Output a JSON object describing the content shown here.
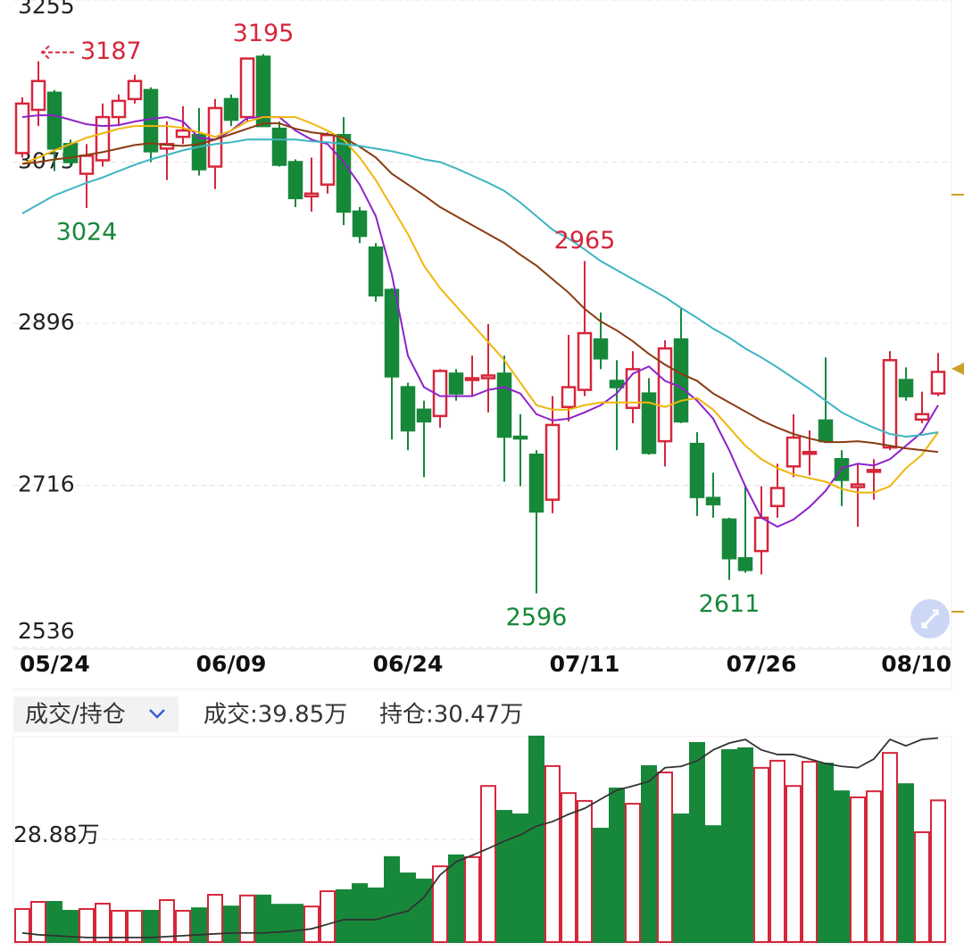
{
  "header": {
    "selector": "成交/持仓",
    "volume": "成交:39.85万",
    "open_interest": "持仓:30.47万"
  },
  "chart_data": [
    {
      "type": "candlestick",
      "categories": [
        "05/24",
        null,
        null,
        null,
        null,
        null,
        null,
        null,
        null,
        null,
        null,
        null,
        null,
        "06/09",
        null,
        null,
        null,
        null,
        null,
        null,
        null,
        null,
        null,
        null,
        "06/24",
        null,
        null,
        null,
        null,
        null,
        null,
        null,
        null,
        null,
        null,
        "07/11",
        null,
        null,
        null,
        null,
        null,
        null,
        null,
        null,
        null,
        null,
        "07/26",
        null,
        null,
        null,
        null,
        null,
        null,
        null,
        null,
        null,
        null,
        "08/10"
      ],
      "open": [
        3085,
        3133,
        3152,
        3095,
        3062,
        3077,
        3125,
        3145,
        3155,
        3090,
        3103,
        3105,
        3070,
        3145,
        3125,
        3192,
        3112,
        3075,
        3037,
        3050,
        3105,
        3020,
        2980,
        2933,
        2825,
        2800,
        2793,
        2840,
        2833,
        2835,
        2840,
        2770,
        2750,
        2700,
        2803,
        2822,
        2878,
        2832,
        2802,
        2818,
        2765,
        2878,
        2762,
        2702,
        2678,
        2635,
        2643,
        2693,
        2737,
        2751,
        2788,
        2745,
        2714,
        2731,
        2758,
        2833,
        2789,
        2818
      ],
      "high": [
        3147,
        3187,
        3155,
        3100,
        3095,
        3140,
        3150,
        3172,
        3158,
        3120,
        3137,
        3135,
        3145,
        3150,
        3188,
        3195,
        3120,
        3078,
        3080,
        3108,
        3125,
        3025,
        2985,
        2935,
        2830,
        2810,
        2845,
        2845,
        2860,
        2895,
        2860,
        2795,
        2755,
        2815,
        2883,
        2965,
        2908,
        2855,
        2865,
        2835,
        2877,
        2913,
        2775,
        2730,
        2680,
        2715,
        2715,
        2740,
        2795,
        2777,
        2858,
        2755,
        2740,
        2745,
        2865,
        2847,
        2820,
        2863
      ],
      "low": [
        3080,
        3115,
        3065,
        3070,
        3024,
        3070,
        3115,
        3140,
        3075,
        3055,
        3095,
        3060,
        3045,
        3115,
        3120,
        3115,
        3070,
        3025,
        3020,
        3040,
        3005,
        2985,
        2920,
        2767,
        2755,
        2725,
        2780,
        2810,
        2815,
        2797,
        2720,
        2715,
        2596,
        2685,
        2787,
        2815,
        2845,
        2755,
        2785,
        2750,
        2737,
        2785,
        2682,
        2680,
        2611,
        2619,
        2617,
        2680,
        2725,
        2727,
        2763,
        2693,
        2670,
        2700,
        2755,
        2810,
        2785,
        2815
      ],
      "close": [
        3140,
        3165,
        3090,
        3075,
        3082,
        3125,
        3143,
        3165,
        3087,
        3095,
        3110,
        3067,
        3135,
        3122,
        3190,
        3115,
        3072,
        3035,
        3040,
        3105,
        3020,
        2993,
        2927,
        2837,
        2777,
        2787,
        2843,
        2818,
        2835,
        2838,
        2770,
        2768,
        2687,
        2783,
        2825,
        2885,
        2857,
        2825,
        2845,
        2752,
        2868,
        2787,
        2703,
        2695,
        2635,
        2622,
        2680,
        2713,
        2769,
        2753,
        2765,
        2722,
        2717,
        2733,
        2855,
        2815,
        2795,
        2842
      ],
      "up_color": "#d6263b",
      "down_color": "#17883a",
      "series": [
        {
          "color": "#8e22c9",
          "values": [
            3125,
            3127,
            3127,
            3122,
            3117,
            3115,
            3116,
            3120,
            3123,
            3125,
            3120,
            3102,
            3100,
            3110,
            3124,
            3125,
            3125,
            3110,
            3100,
            3095,
            3075,
            3050,
            3015,
            2950,
            2860,
            2825,
            2815,
            2815,
            2815,
            2822,
            2825,
            2818,
            2795,
            2788,
            2790,
            2797,
            2805,
            2818,
            2840,
            2848,
            2832,
            2825,
            2810,
            2790,
            2755,
            2715,
            2680,
            2670,
            2678,
            2692,
            2710,
            2735,
            2740,
            2738,
            2745,
            2760,
            2775,
            2805
          ]
        },
        {
          "color": "#efb60c",
          "values": [
            3073,
            3080,
            3088,
            3095,
            3102,
            3107,
            3112,
            3115,
            3115,
            3115,
            3113,
            3108,
            3103,
            3110,
            3120,
            3125,
            3125,
            3125,
            3118,
            3110,
            3100,
            3080,
            3055,
            3025,
            2995,
            2960,
            2935,
            2915,
            2895,
            2875,
            2855,
            2830,
            2805,
            2800,
            2800,
            2805,
            2808,
            2808,
            2808,
            2808,
            2803,
            2810,
            2813,
            2800,
            2780,
            2760,
            2745,
            2735,
            2728,
            2724,
            2720,
            2712,
            2708,
            2708,
            2715,
            2735,
            2750,
            2775
          ]
        },
        {
          "color": "#8a3b12",
          "values": [
            3073,
            3075,
            3078,
            3080,
            3083,
            3086,
            3090,
            3094,
            3096,
            3094,
            3093,
            3095,
            3100,
            3106,
            3112,
            3118,
            3118,
            3112,
            3108,
            3106,
            3102,
            3092,
            3080,
            3062,
            3050,
            3038,
            3025,
            3015,
            3005,
            2995,
            2985,
            2972,
            2960,
            2945,
            2930,
            2912,
            2898,
            2888,
            2876,
            2862,
            2850,
            2840,
            2832,
            2818,
            2808,
            2798,
            2788,
            2780,
            2773,
            2768,
            2764,
            2764,
            2765,
            2763,
            2760,
            2757,
            2755,
            2753
          ]
        },
        {
          "color": "#3cb5c2",
          "values": [
            3018,
            3028,
            3038,
            3045,
            3052,
            3058,
            3065,
            3072,
            3078,
            3083,
            3088,
            3092,
            3095,
            3097,
            3100,
            3100,
            3100,
            3100,
            3098,
            3097,
            3095,
            3093,
            3090,
            3087,
            3083,
            3078,
            3075,
            3068,
            3060,
            3052,
            3043,
            3030,
            3015,
            3000,
            2990,
            2978,
            2965,
            2955,
            2945,
            2935,
            2925,
            2913,
            2902,
            2890,
            2880,
            2868,
            2858,
            2847,
            2835,
            2823,
            2810,
            2797,
            2788,
            2780,
            2773,
            2770,
            2772,
            2775
          ]
        }
      ],
      "ylim": [
        2536,
        3255
      ],
      "yticks": [
        2536,
        2716,
        2896,
        3075,
        3255
      ],
      "grid": true,
      "annotations": {
        "highs": [
          3187,
          3195,
          2965
        ],
        "lows": [
          3024,
          2596,
          2611
        ]
      }
    },
    {
      "type": "bar",
      "values": [
        9.3,
        11.3,
        11.3,
        8.8,
        9.3,
        10.8,
        8.8,
        8.8,
        8.8,
        11.8,
        8.8,
        9.5,
        13.3,
        10.0,
        13.1,
        13.1,
        10.5,
        10.5,
        10.0,
        14.3,
        14.6,
        16.3,
        15.1,
        23.9,
        19.3,
        17.6,
        21.3,
        24.4,
        23.9,
        43.9,
        36.9,
        35.9,
        57.8,
        49.5,
        41.9,
        39.7,
        31.9,
        43.2,
        38.9,
        49.5,
        47.7,
        35.9,
        56.0,
        32.6,
        54.0,
        54.5,
        49.0,
        51.0,
        43.9,
        50.7,
        50.2,
        42.4,
        40.7,
        42.4,
        53.2,
        44.4,
        30.9,
        39.85
      ],
      "ylim": [
        0,
        57.76
      ],
      "yticks": [
        {
          "value": 28.88,
          "label": "28.88万"
        }
      ],
      "grid": true,
      "series": [
        {
          "axis": "y2",
          "color": "#333333",
          "values": [
            26.2,
            26.16,
            26.14,
            26.12,
            26.1,
            26.1,
            26.1,
            26.1,
            26.1,
            26.12,
            26.14,
            26.16,
            26.18,
            26.2,
            26.2,
            26.2,
            26.22,
            26.25,
            26.29,
            26.39,
            26.49,
            26.49,
            26.49,
            26.59,
            26.68,
            26.98,
            27.47,
            27.76,
            27.9,
            28.05,
            28.21,
            28.35,
            28.54,
            28.64,
            28.8,
            28.93,
            29.13,
            29.33,
            29.42,
            29.52,
            29.82,
            29.85,
            29.97,
            30.21,
            30.36,
            30.44,
            30.21,
            30.11,
            30.11,
            30.01,
            29.91,
            29.85,
            29.82,
            30.01,
            30.44,
            30.3,
            30.44,
            30.47
          ]
        }
      ],
      "y2lim": [
        26.0,
        30.5
      ]
    }
  ]
}
